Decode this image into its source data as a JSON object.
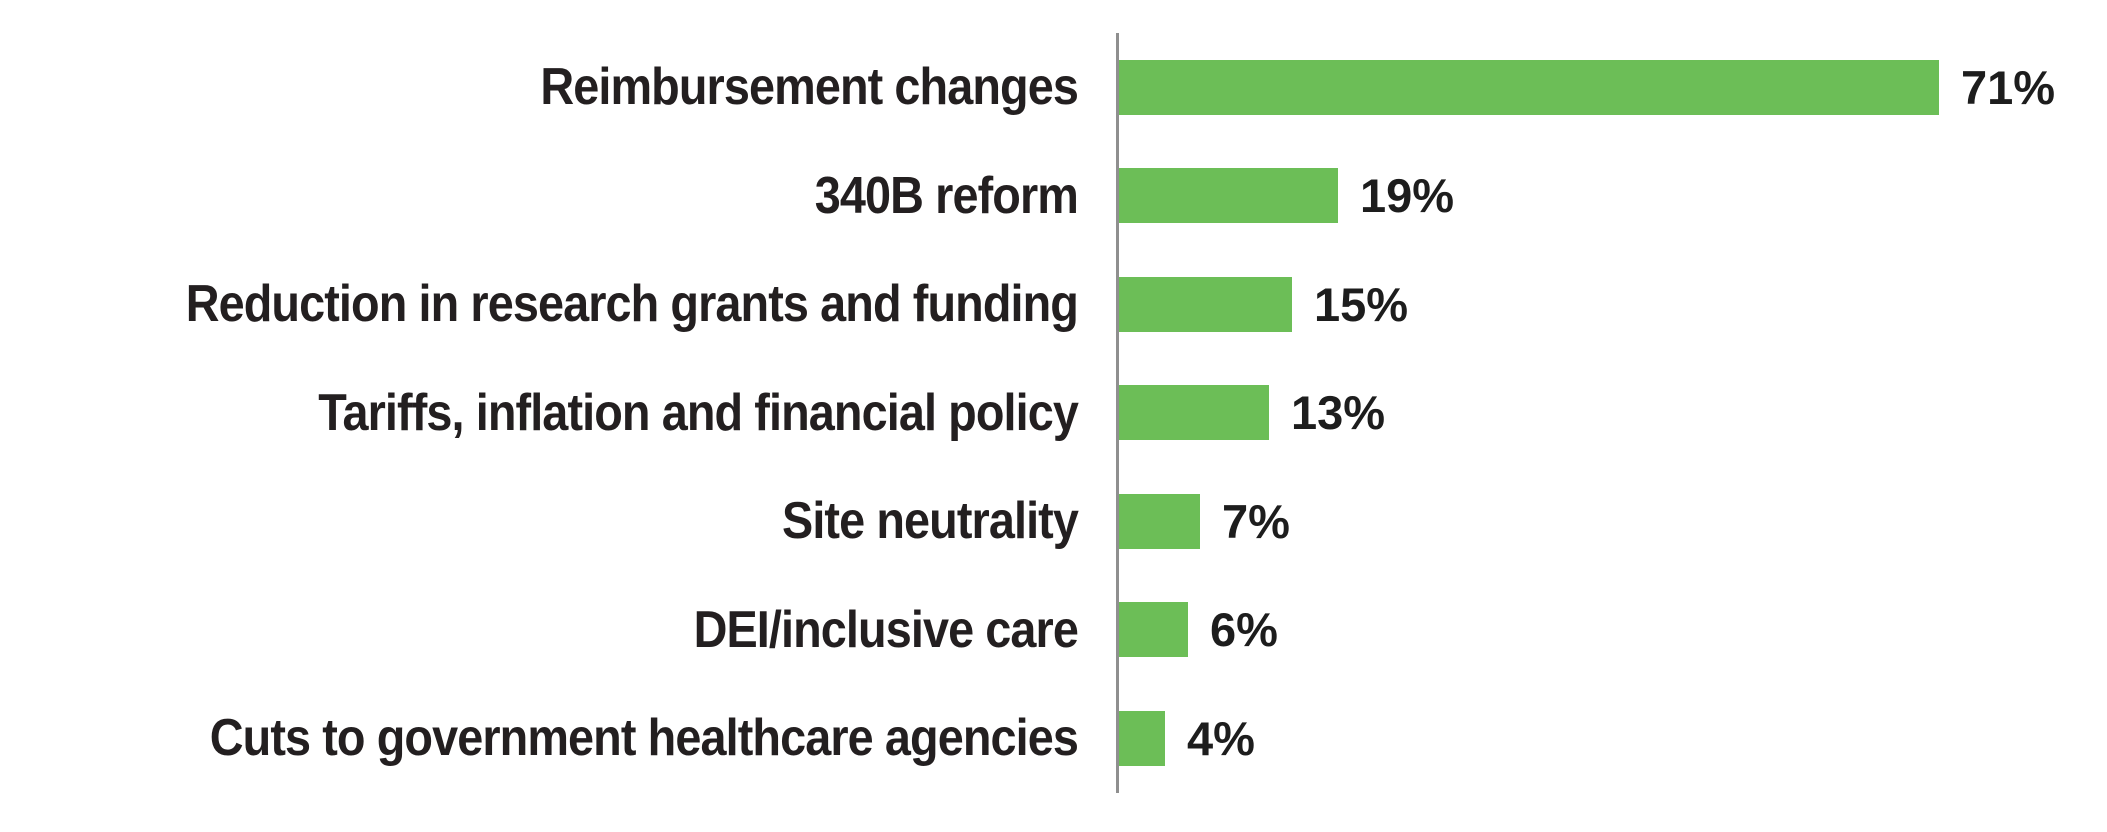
{
  "chart_data": {
    "type": "bar",
    "orientation": "horizontal",
    "title": "",
    "xlabel": "",
    "ylabel": "",
    "grid": false,
    "legend": null,
    "categories": [
      "Reimbursement changes",
      "340B reform",
      "Reduction in research grants and funding",
      "Tariffs, inflation and financial policy",
      "Site neutrality",
      "DEI/inclusive care",
      "Cuts to government healthcare agencies"
    ],
    "values": [
      71,
      19,
      15,
      13,
      7,
      6,
      4
    ],
    "value_labels": [
      "71%",
      "19%",
      "15%",
      "13%",
      "7%",
      "6%",
      "4%"
    ],
    "colors": {
      "bar": "#6CBE57",
      "category_text": "#231F20",
      "value_text": "#1D1D1D",
      "axis_line": "#8F8F8F",
      "background": "#FFFFFF"
    }
  }
}
